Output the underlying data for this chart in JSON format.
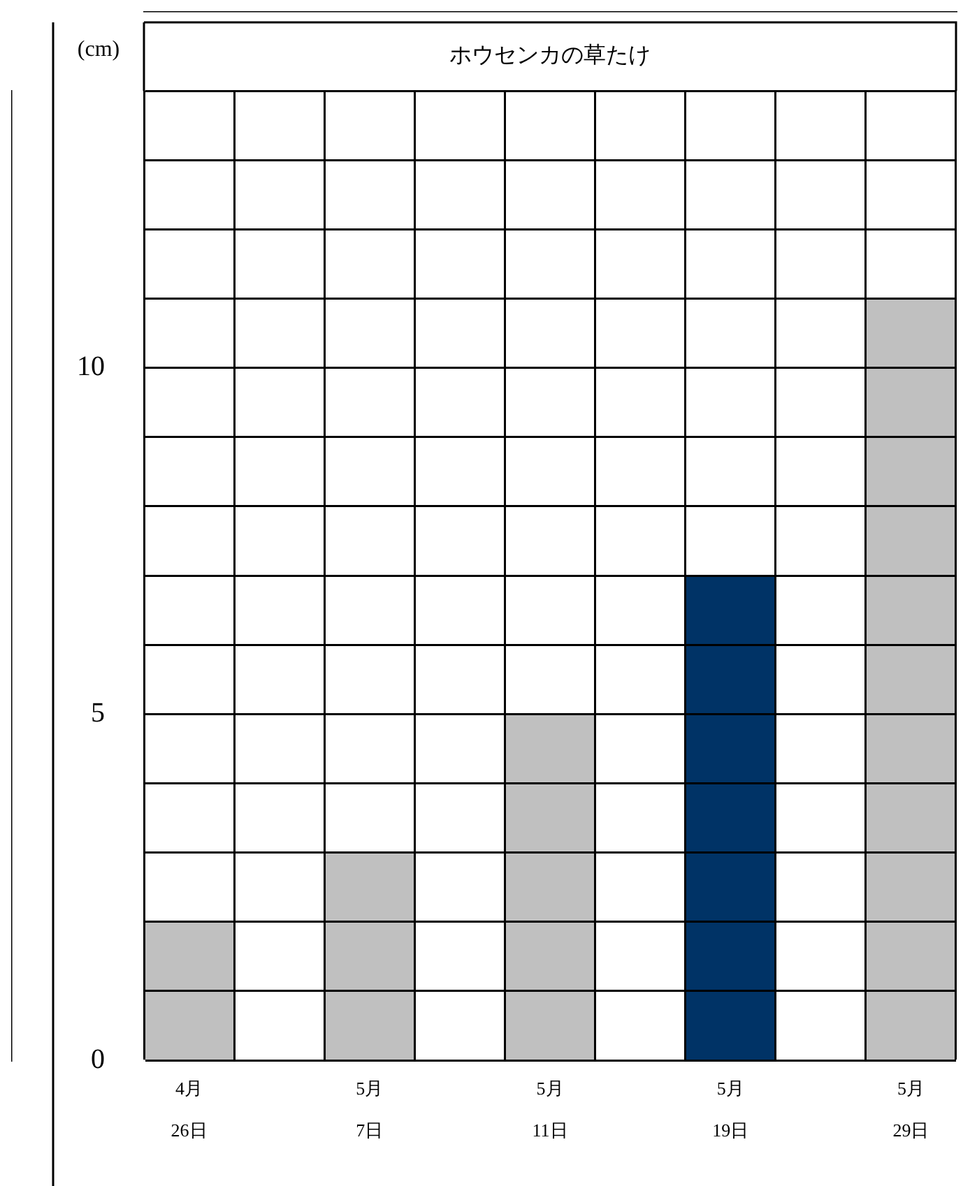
{
  "chart_data": {
    "type": "bar",
    "title": "ホウセンカの草たけ",
    "ylabel": "(cm)",
    "categories": [
      "4月 26日",
      null,
      "5月 7日",
      null,
      "5月 11日",
      null,
      "5月 19日",
      null,
      "5月 29日"
    ],
    "values": [
      2,
      null,
      3,
      null,
      5,
      null,
      7,
      null,
      11
    ],
    "colors": [
      "#c0c0c0",
      "#c0c0c0",
      "#c0c0c0",
      "#c0c0c0",
      "#c0c0c0",
      "#c0c0c0",
      "#003366",
      "#c0c0c0",
      "#c0c0c0"
    ],
    "ylim": [
      0,
      14
    ],
    "yticks": [
      0,
      {
        "value": 1,
        "label": null
      },
      {
        "value": 2,
        "label": null
      },
      {
        "value": 3,
        "label": null
      },
      {
        "value": 4,
        "label": null
      },
      5,
      {
        "value": 6,
        "label": null
      },
      {
        "value": 7,
        "label": null
      },
      {
        "value": 8,
        "label": null
      },
      {
        "value": 9,
        "label": null
      },
      10,
      {
        "value": 11,
        "label": null
      },
      {
        "value": 12,
        "label": null
      },
      {
        "value": 13,
        "label": null
      },
      {
        "value": 14,
        "label": null
      }
    ],
    "grid": true,
    "legend": false
  }
}
